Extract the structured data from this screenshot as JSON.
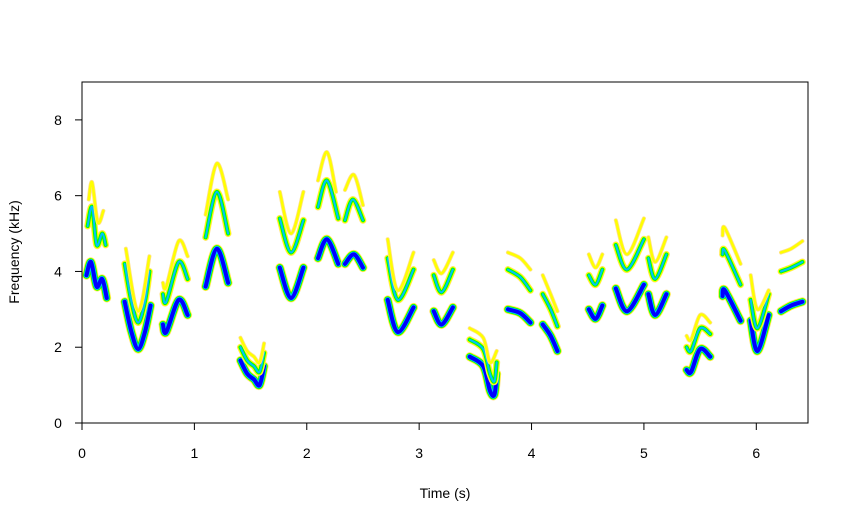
{
  "chart_data": {
    "type": "spectrogram",
    "title": "",
    "xlabel": "Time (s)",
    "ylabel": "Frequency (kHz)",
    "xlim": [
      0,
      6.46
    ],
    "ylim": [
      0,
      9
    ],
    "xticks": [
      "0",
      "1",
      "2",
      "3",
      "4",
      "5",
      "6"
    ],
    "yticks": [
      "0",
      "2",
      "4",
      "6",
      "8"
    ],
    "grid": false,
    "legend": "none",
    "colors": {
      "strongest": "#0000ff",
      "strong": "#00bfff",
      "medium": "#00ff00",
      "weak": "#ffff00",
      "faint": "#ffe08a"
    },
    "contours": [
      {
        "level": "fundamental",
        "points": [
          [
            0.04,
            3.9
          ],
          [
            0.08,
            4.25
          ],
          [
            0.13,
            3.6
          ],
          [
            0.18,
            3.8
          ],
          [
            0.22,
            3.3
          ]
        ]
      },
      {
        "level": "harmonic2",
        "points": [
          [
            0.05,
            5.2
          ],
          [
            0.09,
            5.7
          ],
          [
            0.13,
            4.7
          ],
          [
            0.18,
            5.0
          ],
          [
            0.21,
            4.7
          ]
        ]
      },
      {
        "level": "harmonic3",
        "points": [
          [
            0.06,
            5.9
          ],
          [
            0.09,
            6.35
          ],
          [
            0.14,
            5.3
          ],
          [
            0.19,
            5.6
          ]
        ]
      },
      {
        "level": "fundamental",
        "points": [
          [
            0.38,
            3.2
          ],
          [
            0.44,
            2.4
          ],
          [
            0.5,
            1.95
          ],
          [
            0.56,
            2.4
          ],
          [
            0.61,
            3.1
          ]
        ]
      },
      {
        "level": "harmonic2",
        "points": [
          [
            0.38,
            4.2
          ],
          [
            0.44,
            3.2
          ],
          [
            0.5,
            2.65
          ],
          [
            0.56,
            3.2
          ],
          [
            0.6,
            4.0
          ]
        ]
      },
      {
        "level": "harmonic3",
        "points": [
          [
            0.39,
            4.6
          ],
          [
            0.5,
            2.95
          ],
          [
            0.6,
            4.4
          ]
        ]
      },
      {
        "level": "fundamental",
        "points": [
          [
            0.72,
            2.6
          ],
          [
            0.75,
            2.4
          ],
          [
            0.86,
            3.25
          ],
          [
            0.94,
            2.85
          ]
        ]
      },
      {
        "level": "harmonic2",
        "points": [
          [
            0.72,
            3.4
          ],
          [
            0.75,
            3.2
          ],
          [
            0.86,
            4.25
          ],
          [
            0.94,
            3.8
          ]
        ]
      },
      {
        "level": "harmonic3",
        "points": [
          [
            0.72,
            3.7
          ],
          [
            0.75,
            3.6
          ],
          [
            0.86,
            4.8
          ],
          [
            0.94,
            4.4
          ]
        ]
      },
      {
        "level": "fundamental",
        "points": [
          [
            1.1,
            3.6
          ],
          [
            1.2,
            4.6
          ],
          [
            1.3,
            3.7
          ]
        ]
      },
      {
        "level": "harmonic2",
        "points": [
          [
            1.1,
            4.9
          ],
          [
            1.2,
            6.1
          ],
          [
            1.3,
            5.0
          ]
        ]
      },
      {
        "level": "harmonic3",
        "points": [
          [
            1.1,
            5.5
          ],
          [
            1.2,
            6.85
          ],
          [
            1.3,
            5.9
          ]
        ]
      },
      {
        "level": "fundamental",
        "points": [
          [
            1.41,
            1.65
          ],
          [
            1.47,
            1.3
          ],
          [
            1.53,
            1.15
          ],
          [
            1.58,
            1.0
          ],
          [
            1.62,
            1.5
          ]
        ]
      },
      {
        "level": "harmonic2",
        "points": [
          [
            1.41,
            2.0
          ],
          [
            1.47,
            1.65
          ],
          [
            1.53,
            1.5
          ],
          [
            1.58,
            1.35
          ],
          [
            1.62,
            1.85
          ]
        ]
      },
      {
        "level": "harmonic3",
        "points": [
          [
            1.41,
            2.25
          ],
          [
            1.47,
            1.9
          ],
          [
            1.53,
            1.75
          ],
          [
            1.58,
            1.6
          ],
          [
            1.62,
            2.1
          ]
        ]
      },
      {
        "level": "fundamental",
        "points": [
          [
            1.76,
            4.1
          ],
          [
            1.86,
            3.3
          ],
          [
            1.97,
            4.1
          ]
        ]
      },
      {
        "level": "harmonic2",
        "points": [
          [
            1.76,
            5.4
          ],
          [
            1.86,
            4.5
          ],
          [
            1.97,
            5.35
          ]
        ]
      },
      {
        "level": "harmonic3",
        "points": [
          [
            1.76,
            6.1
          ],
          [
            1.86,
            5.0
          ],
          [
            1.97,
            6.1
          ]
        ]
      },
      {
        "level": "fundamental",
        "points": [
          [
            2.1,
            4.35
          ],
          [
            2.18,
            4.85
          ],
          [
            2.28,
            4.2
          ]
        ]
      },
      {
        "level": "harmonic2",
        "points": [
          [
            2.1,
            5.7
          ],
          [
            2.18,
            6.4
          ],
          [
            2.28,
            5.4
          ]
        ]
      },
      {
        "level": "harmonic3",
        "points": [
          [
            2.1,
            6.4
          ],
          [
            2.18,
            7.15
          ],
          [
            2.26,
            6.1
          ]
        ]
      },
      {
        "level": "fundamental",
        "points": [
          [
            2.34,
            4.2
          ],
          [
            2.42,
            4.45
          ],
          [
            2.5,
            4.1
          ]
        ]
      },
      {
        "level": "harmonic2",
        "points": [
          [
            2.34,
            5.35
          ],
          [
            2.41,
            5.9
          ],
          [
            2.5,
            5.35
          ]
        ]
      },
      {
        "level": "harmonic3",
        "points": [
          [
            2.34,
            6.15
          ],
          [
            2.42,
            6.55
          ],
          [
            2.5,
            5.75
          ]
        ]
      },
      {
        "level": "fundamental",
        "points": [
          [
            2.72,
            3.25
          ],
          [
            2.81,
            2.4
          ],
          [
            2.95,
            3.05
          ]
        ]
      },
      {
        "level": "harmonic2",
        "points": [
          [
            2.72,
            4.35
          ],
          [
            2.81,
            3.25
          ],
          [
            2.95,
            4.05
          ]
        ]
      },
      {
        "level": "harmonic3",
        "points": [
          [
            2.72,
            4.85
          ],
          [
            2.81,
            3.5
          ],
          [
            2.95,
            4.5
          ]
        ]
      },
      {
        "level": "fundamental",
        "points": [
          [
            3.13,
            2.95
          ],
          [
            3.2,
            2.6
          ],
          [
            3.3,
            3.05
          ]
        ]
      },
      {
        "level": "harmonic2",
        "points": [
          [
            3.13,
            3.9
          ],
          [
            3.2,
            3.45
          ],
          [
            3.3,
            4.05
          ]
        ]
      },
      {
        "level": "harmonic3",
        "points": [
          [
            3.13,
            4.3
          ],
          [
            3.2,
            3.95
          ],
          [
            3.3,
            4.5
          ]
        ]
      },
      {
        "level": "fundamental",
        "points": [
          [
            3.45,
            1.75
          ],
          [
            3.57,
            1.5
          ],
          [
            3.63,
            0.85
          ],
          [
            3.67,
            0.75
          ],
          [
            3.69,
            1.3
          ]
        ]
      },
      {
        "level": "harmonic2",
        "points": [
          [
            3.45,
            2.2
          ],
          [
            3.57,
            1.95
          ],
          [
            3.63,
            1.3
          ],
          [
            3.67,
            1.1
          ],
          [
            3.69,
            1.6
          ]
        ]
      },
      {
        "level": "harmonic3",
        "points": [
          [
            3.45,
            2.5
          ],
          [
            3.57,
            2.25
          ],
          [
            3.63,
            1.6
          ],
          [
            3.69,
            1.9
          ]
        ]
      },
      {
        "level": "fundamental",
        "points": [
          [
            3.79,
            3.0
          ],
          [
            3.9,
            2.9
          ],
          [
            3.99,
            2.65
          ]
        ]
      },
      {
        "level": "harmonic2",
        "points": [
          [
            3.79,
            4.05
          ],
          [
            3.9,
            3.85
          ],
          [
            3.99,
            3.5
          ]
        ]
      },
      {
        "level": "harmonic3",
        "points": [
          [
            3.79,
            4.5
          ],
          [
            3.9,
            4.35
          ],
          [
            3.99,
            4.05
          ]
        ]
      },
      {
        "level": "fundamental",
        "points": [
          [
            4.1,
            2.6
          ],
          [
            4.17,
            2.3
          ],
          [
            4.23,
            1.9
          ]
        ]
      },
      {
        "level": "harmonic2",
        "points": [
          [
            4.1,
            3.4
          ],
          [
            4.17,
            3.0
          ],
          [
            4.23,
            2.55
          ]
        ]
      },
      {
        "level": "harmonic3",
        "points": [
          [
            4.1,
            3.9
          ],
          [
            4.17,
            3.4
          ],
          [
            4.23,
            2.95
          ]
        ]
      },
      {
        "level": "fundamental",
        "points": [
          [
            4.51,
            3.0
          ],
          [
            4.57,
            2.75
          ],
          [
            4.63,
            3.1
          ]
        ]
      },
      {
        "level": "harmonic2",
        "points": [
          [
            4.51,
            3.9
          ],
          [
            4.57,
            3.65
          ],
          [
            4.63,
            4.05
          ]
        ]
      },
      {
        "level": "harmonic3",
        "points": [
          [
            4.51,
            4.45
          ],
          [
            4.57,
            4.1
          ],
          [
            4.63,
            4.45
          ]
        ]
      },
      {
        "level": "fundamental",
        "points": [
          [
            4.75,
            3.55
          ],
          [
            4.85,
            2.95
          ],
          [
            5.0,
            3.65
          ]
        ]
      },
      {
        "level": "harmonic2",
        "points": [
          [
            4.75,
            4.7
          ],
          [
            4.85,
            4.05
          ],
          [
            5.0,
            4.85
          ]
        ]
      },
      {
        "level": "harmonic3",
        "points": [
          [
            4.75,
            5.35
          ],
          [
            4.85,
            4.45
          ],
          [
            5.0,
            5.4
          ]
        ]
      },
      {
        "level": "fundamental",
        "points": [
          [
            5.04,
            3.4
          ],
          [
            5.1,
            2.85
          ],
          [
            5.2,
            3.4
          ]
        ]
      },
      {
        "level": "harmonic2",
        "points": [
          [
            5.04,
            4.35
          ],
          [
            5.1,
            3.8
          ],
          [
            5.2,
            4.45
          ]
        ]
      },
      {
        "level": "harmonic3",
        "points": [
          [
            5.04,
            4.9
          ],
          [
            5.1,
            4.25
          ],
          [
            5.2,
            4.9
          ]
        ]
      },
      {
        "level": "fundamental",
        "points": [
          [
            5.38,
            1.4
          ],
          [
            5.42,
            1.35
          ],
          [
            5.5,
            1.95
          ],
          [
            5.59,
            1.75
          ]
        ]
      },
      {
        "level": "harmonic2",
        "points": [
          [
            5.38,
            2.0
          ],
          [
            5.42,
            1.9
          ],
          [
            5.5,
            2.5
          ],
          [
            5.59,
            2.35
          ]
        ]
      },
      {
        "level": "harmonic3",
        "points": [
          [
            5.38,
            2.3
          ],
          [
            5.42,
            2.2
          ],
          [
            5.5,
            2.85
          ],
          [
            5.59,
            2.65
          ]
        ]
      },
      {
        "level": "fundamental",
        "points": [
          [
            5.7,
            3.35
          ],
          [
            5.72,
            3.5
          ],
          [
            5.86,
            2.7
          ]
        ]
      },
      {
        "level": "harmonic2",
        "points": [
          [
            5.7,
            4.45
          ],
          [
            5.72,
            4.55
          ],
          [
            5.86,
            3.65
          ]
        ]
      },
      {
        "level": "harmonic3",
        "points": [
          [
            5.7,
            4.95
          ],
          [
            5.72,
            5.15
          ],
          [
            5.86,
            4.2
          ]
        ]
      },
      {
        "level": "fundamental",
        "points": [
          [
            5.95,
            2.7
          ],
          [
            6.01,
            1.9
          ],
          [
            6.11,
            2.85
          ]
        ]
      },
      {
        "level": "harmonic2",
        "points": [
          [
            5.95,
            3.25
          ],
          [
            6.01,
            2.5
          ],
          [
            6.11,
            3.4
          ]
        ]
      },
      {
        "level": "harmonic3",
        "points": [
          [
            5.95,
            3.9
          ],
          [
            6.01,
            3.0
          ],
          [
            6.11,
            3.5
          ]
        ]
      },
      {
        "level": "fundamental",
        "points": [
          [
            6.22,
            2.95
          ],
          [
            6.31,
            3.1
          ],
          [
            6.41,
            3.2
          ]
        ]
      },
      {
        "level": "harmonic2",
        "points": [
          [
            6.22,
            4.0
          ],
          [
            6.31,
            4.1
          ],
          [
            6.41,
            4.25
          ]
        ]
      },
      {
        "level": "harmonic3",
        "points": [
          [
            6.22,
            4.5
          ],
          [
            6.31,
            4.6
          ],
          [
            6.41,
            4.8
          ]
        ]
      }
    ]
  }
}
